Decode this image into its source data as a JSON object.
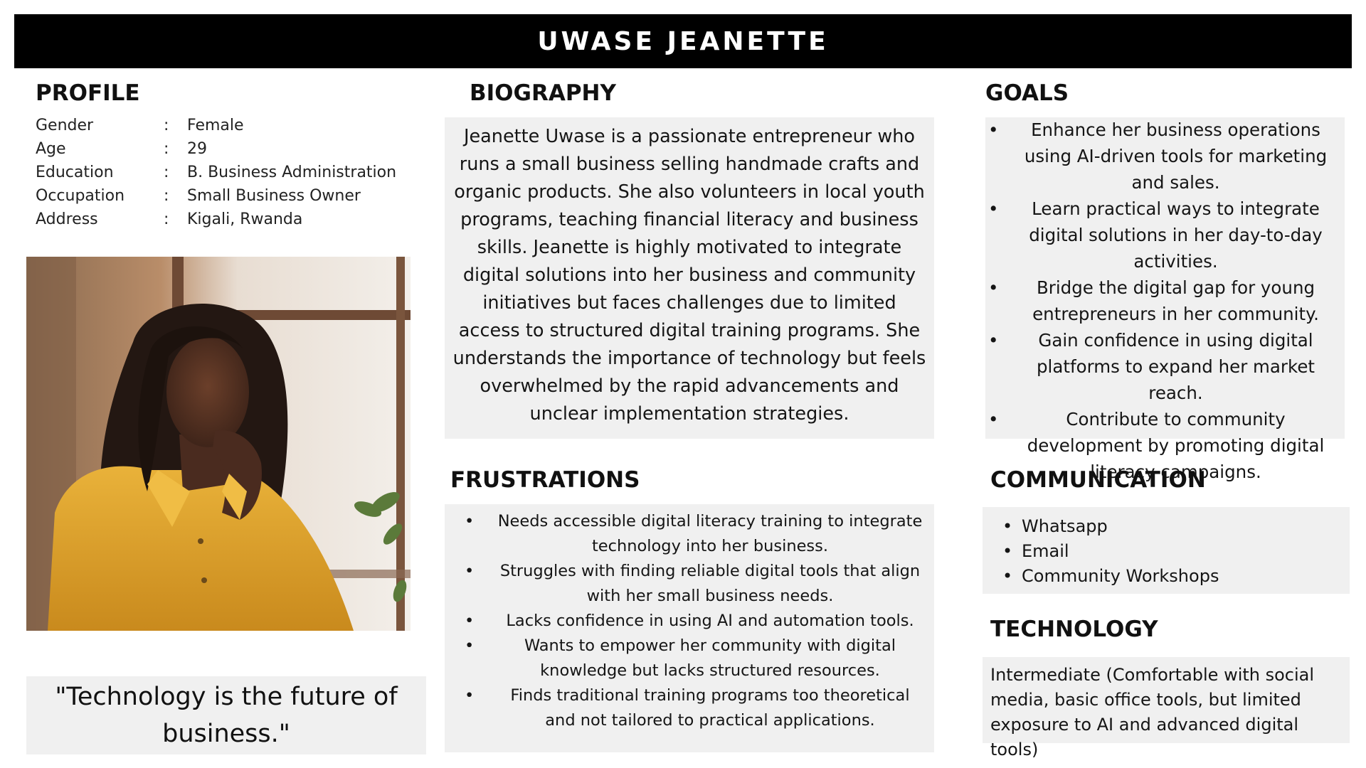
{
  "header": {
    "name": "UWASE JEANETTE"
  },
  "profile": {
    "title": "PROFILE",
    "rows": [
      {
        "label": "Gender",
        "colon": ":",
        "value": "Female"
      },
      {
        "label": "Age",
        "colon": ":",
        "value": "29"
      },
      {
        "label": "Education",
        "colon": ":",
        "value": "B. Business Administration"
      },
      {
        "label": "Occupation",
        "colon": ":",
        "value": "Small Business Owner"
      },
      {
        "label": "Address",
        "colon": ":",
        "value": "Kigali, Rwanda"
      }
    ]
  },
  "photo": {
    "subject": "woman-in-yellow-shirt-thinking"
  },
  "quote": {
    "text": "\"Technology is the future of business.\""
  },
  "biography": {
    "title": "BIOGRAPHY",
    "text": "Jeanette Uwase is a passionate entrepreneur who runs a small business selling handmade crafts and organic products. She also volunteers in local youth programs, teaching financial literacy and business skills. Jeanette is highly motivated to integrate digital solutions into her business and community initiatives but faces challenges due to limited access to structured digital training programs. She understands the importance of technology but feels overwhelmed by the rapid advancements and unclear implementation strategies."
  },
  "goals": {
    "title": "GOALS",
    "bullet": "•",
    "items": [
      "Enhance her business operations using AI-driven tools for marketing and sales.",
      "Learn practical ways to integrate digital solutions in her day-to-day activities.",
      "Bridge the digital gap for young entrepreneurs in her community.",
      "Gain confidence in using digital platforms to expand her market reach.",
      "Contribute to community development by promoting digital literacy campaigns."
    ]
  },
  "frustrations": {
    "title": "FRUSTRATIONS",
    "bullet": "•",
    "items": [
      "Needs accessible digital literacy training to integrate technology into her business.",
      "Struggles with finding reliable digital tools that align with her small business needs.",
      "Lacks confidence in using AI and automation tools.",
      "Wants to empower her community with digital knowledge but lacks structured resources.",
      "Finds traditional training programs too theoretical and not tailored to practical applications."
    ]
  },
  "communication": {
    "title": "COMMUNICATION",
    "bullet": "•",
    "items": [
      "Whatsapp",
      "Email",
      "Community Workshops"
    ]
  },
  "technology": {
    "title": "TECHNOLOGY",
    "text": "Intermediate (Comfortable with social media, basic office tools, but limited exposure to AI and advanced digital tools)"
  },
  "colors": {
    "header_bg": "#000000",
    "header_text": "#ffffff",
    "panel_bg": "#f0f0f0",
    "shirt": "#e2a52a"
  }
}
